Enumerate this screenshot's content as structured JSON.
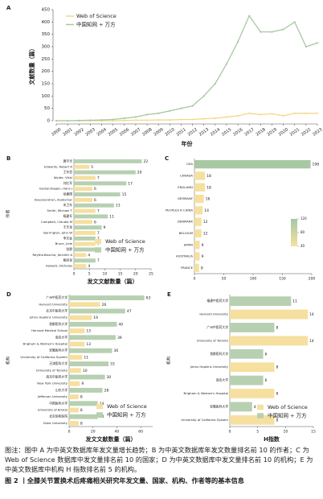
{
  "chart_data": [
    {
      "type": "line",
      "panel": "A",
      "x_label": "年份",
      "y_label": "文献数量（篇）",
      "categories": [
        "2000",
        "2001",
        "2002",
        "2003",
        "2004",
        "2005",
        "2006",
        "2007",
        "2008",
        "2009",
        "2010",
        "2011",
        "2012",
        "2013",
        "2014",
        "2015",
        "2016",
        "2017",
        "2018",
        "2019",
        "2020",
        "2021",
        "2022",
        "2023"
      ],
      "series": [
        {
          "name": "Web of Science",
          "color": "#f2d88a",
          "values": [
            0,
            0,
            0,
            0,
            0,
            0,
            1,
            2,
            2,
            3,
            3,
            5,
            5,
            8,
            10,
            15,
            20,
            30,
            25,
            28,
            20,
            30,
            30,
            30
          ]
        },
        {
          "name": "中国知网 + 万方",
          "color": "#a7c8a2",
          "values": [
            0,
            0,
            1,
            2,
            3,
            5,
            10,
            15,
            25,
            30,
            40,
            50,
            60,
            100,
            150,
            230,
            320,
            425,
            360,
            360,
            370,
            400,
            300,
            315
          ]
        }
      ],
      "ylim": [
        0,
        450
      ],
      "yticks": [
        0,
        50,
        100,
        150,
        200,
        250,
        300,
        350,
        400,
        450
      ]
    },
    {
      "type": "hbar",
      "panel": "B",
      "x_label": "发文文献数量（篇）",
      "y_label": "作者",
      "categories": [
        "黄宇光",
        "Edwards, Robert R",
        "王东信",
        "Wylde, Vikki",
        "刘红军",
        "Gerbershagen, Hans J",
        "徐建国",
        "Buvanendran, Asokumar",
        "米卫东",
        "Smith, Michael T",
        "杨建军",
        "Campbell, Claudia M",
        "王天龙",
        "Barrington, John W",
        "李天佐",
        "Bruce, Julie",
        "张野",
        "Reythe-Beucha, Jennifer A",
        "姚尚龙",
        "Howells, Nicholas"
      ],
      "values": [
        22,
        5,
        20,
        7,
        17,
        6,
        15,
        6,
        13,
        7,
        11,
        6,
        9,
        7,
        7,
        7,
        7,
        4,
        7,
        4
      ],
      "bar_colors": [
        "#b7d0b2",
        "#f6e0a0",
        "#b7d0b2",
        "#f6e0a0",
        "#b7d0b2",
        "#f6e0a0",
        "#b7d0b2",
        "#f6e0a0",
        "#b7d0b2",
        "#f6e0a0",
        "#b7d0b2",
        "#f6e0a0",
        "#b7d0b2",
        "#f6e0a0",
        "#b7d0b2",
        "#f6e0a0",
        "#b7d0b2",
        "#f6e0a0",
        "#b7d0b2",
        "#f6e0a0"
      ],
      "legend": [
        {
          "name": "Web of Science",
          "color": "#f6e0a0"
        },
        {
          "name": "中国知网 + 万方",
          "color": "#b7d0b2"
        }
      ],
      "xlim": [
        0,
        25
      ],
      "xticks": [
        0,
        5,
        10,
        15,
        20,
        25
      ]
    },
    {
      "type": "hbar",
      "panel": "C",
      "categories": [
        "USA",
        "CANADA",
        "ENGLAND",
        "GERMANY",
        "PEOPLES R CHINA",
        "DENMARK",
        "BELGIUM",
        "JAPAN",
        "AUSTRALIA",
        "FRANCE"
      ],
      "values": [
        198,
        18,
        18,
        16,
        14,
        12,
        12,
        9,
        9,
        8
      ],
      "colorbar": {
        "colors": [
          "#f6e0a0",
          "#a7c8a2"
        ],
        "ticks": [
          40,
          80,
          120
        ]
      },
      "xlim": [
        0,
        200
      ],
      "xticks": [
        0,
        50,
        100,
        150,
        200
      ]
    },
    {
      "type": "hbar",
      "panel": "D",
      "x_label": "发文文献数量（篇）",
      "y_label": "机构",
      "categories": [
        "广州中医药大学",
        "Harvard University",
        "北京中医药大学",
        "Johns Hopkins University",
        "首都医科大学",
        "Harvard Medical School",
        "南京大学",
        "Brigham & Women's Hospital",
        "安徽医科大学",
        "University of California System",
        "天津医科大学",
        "University of Toronto",
        "南京中医药大学",
        "New York University",
        "山东大学",
        "Jefferson University",
        "中国医科大学",
        "University of Bristol",
        "北京协和医院",
        "Duke University"
      ],
      "values": [
        63,
        26,
        47,
        19,
        40,
        13,
        39,
        13,
        36,
        11,
        33,
        10,
        30,
        9,
        28,
        8,
        24,
        8,
        24,
        8
      ],
      "bar_colors": [
        "#b7d0b2",
        "#f6e0a0",
        "#b7d0b2",
        "#f6e0a0",
        "#b7d0b2",
        "#f6e0a0",
        "#b7d0b2",
        "#f6e0a0",
        "#b7d0b2",
        "#f6e0a0",
        "#b7d0b2",
        "#f6e0a0",
        "#b7d0b2",
        "#f6e0a0",
        "#b7d0b2",
        "#f6e0a0",
        "#b7d0b2",
        "#f6e0a0",
        "#b7d0b2",
        "#f6e0a0"
      ],
      "legend": [
        {
          "name": "Web of Science",
          "color": "#f6e0a0"
        },
        {
          "name": "中国知网 + 万方",
          "color": "#b7d0b2"
        }
      ],
      "xlim": [
        0,
        70
      ],
      "xticks": [
        0,
        20,
        40,
        60
      ]
    },
    {
      "type": "hbar",
      "panel": "E",
      "x_label": "H指数",
      "y_label": "机构",
      "categories": [
        "福建中医药大学",
        "Harvard University",
        "广州中医药大学",
        "University of Toronto",
        "首都医科大学",
        "Johns Hopkins University",
        "南京大学",
        "Brigham & Women's Hospital",
        "安徽医科大学",
        "University of California System"
      ],
      "values": [
        11,
        14,
        8,
        14,
        6,
        8,
        6,
        8,
        4,
        8
      ],
      "bar_colors": [
        "#b7d0b2",
        "#f6e0a0",
        "#b7d0b2",
        "#f6e0a0",
        "#b7d0b2",
        "#f6e0a0",
        "#b7d0b2",
        "#f6e0a0",
        "#b7d0b2",
        "#f6e0a0"
      ],
      "legend": [
        {
          "name": "Web of Science",
          "color": "#f6e0a0"
        },
        {
          "name": "中国知网 + 万方",
          "color": "#b7d0b2"
        }
      ],
      "xlim": [
        0,
        15
      ],
      "xticks": [
        0,
        5,
        10,
        15
      ]
    }
  ],
  "caption": {
    "note": "图注：图中 A 为中英文数据库年发文量增长趋势；B 为中英文数据库年发文数量排名前 10 的作者；C 为 Web of Science 数据库中发文量排名前 10 的国家；D 为中英文数据库中发文量排名前 10 的机构；E 为中英文数据库中机构 H 指数排名前 5 的机构。",
    "title": "图 2 丨全膝关节置换术后疼痛相关研究年发文量、国家、机构、作者等的基本信息"
  }
}
